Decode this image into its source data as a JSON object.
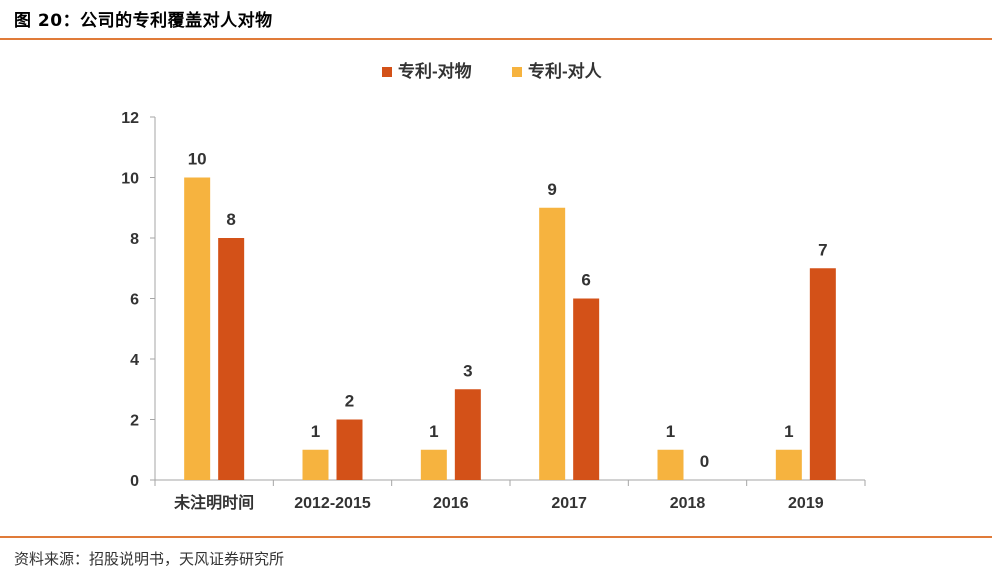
{
  "figure": {
    "title": "图 20：公司的专利覆盖对人对物",
    "source": "资料来源：招股说明书，天风证券研究所"
  },
  "colors": {
    "accent_rule": "#E07B39",
    "series_person": "#F6B33F",
    "series_object": "#D35118",
    "axis": "#A6A6A6"
  },
  "chart_data": {
    "type": "bar",
    "categories": [
      "未注明时间",
      "2012-2015",
      "2016",
      "2017",
      "2018",
      "2019"
    ],
    "series": [
      {
        "name": "专利-对人",
        "values": [
          10,
          1,
          1,
          9,
          1,
          1
        ],
        "color": "#F6B33F"
      },
      {
        "name": "专利-对物",
        "values": [
          8,
          2,
          3,
          6,
          0,
          7
        ],
        "color": "#D35118"
      }
    ],
    "legend_order": [
      "专利-对物",
      "专利-对人"
    ],
    "legend_position": "top-center",
    "ylim": [
      0,
      12
    ],
    "yticks": [
      0,
      2,
      4,
      6,
      8,
      10,
      12
    ],
    "grid": false,
    "xlabel": "",
    "ylabel": ""
  }
}
